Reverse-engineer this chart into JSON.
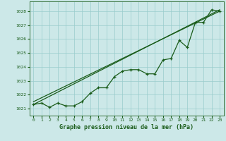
{
  "xlabel": "Graphe pression niveau de la mer (hPa)",
  "xlim": [
    -0.5,
    23.5
  ],
  "ylim": [
    1020.5,
    1028.7
  ],
  "yticks": [
    1021,
    1022,
    1023,
    1024,
    1025,
    1026,
    1027,
    1028
  ],
  "xticks": [
    0,
    1,
    2,
    3,
    4,
    5,
    6,
    7,
    8,
    9,
    10,
    11,
    12,
    13,
    14,
    15,
    16,
    17,
    18,
    19,
    20,
    21,
    22,
    23
  ],
  "bg_color": "#cce8e8",
  "grid_color": "#99cccc",
  "line_color": "#1a5c1a",
  "data_x": [
    0,
    1,
    2,
    3,
    4,
    5,
    6,
    7,
    8,
    9,
    10,
    11,
    12,
    13,
    14,
    15,
    16,
    17,
    18,
    19,
    20,
    21,
    22,
    23
  ],
  "data_y": [
    1021.3,
    1021.4,
    1021.1,
    1021.4,
    1021.2,
    1021.2,
    1021.5,
    1022.1,
    1022.5,
    1022.5,
    1023.3,
    1023.7,
    1023.8,
    1023.8,
    1023.5,
    1023.5,
    1024.5,
    1024.6,
    1025.9,
    1025.4,
    1027.2,
    1027.2,
    1028.1,
    1028.0
  ],
  "trend1_x": [
    0,
    23
  ],
  "trend1_y": [
    1021.3,
    1028.1
  ],
  "trend2_x": [
    0,
    23
  ],
  "trend2_y": [
    1021.5,
    1028.0
  ],
  "marker": "+",
  "markersize": 3.5,
  "linewidth": 0.9,
  "xlabel_fontsize": 6.0
}
